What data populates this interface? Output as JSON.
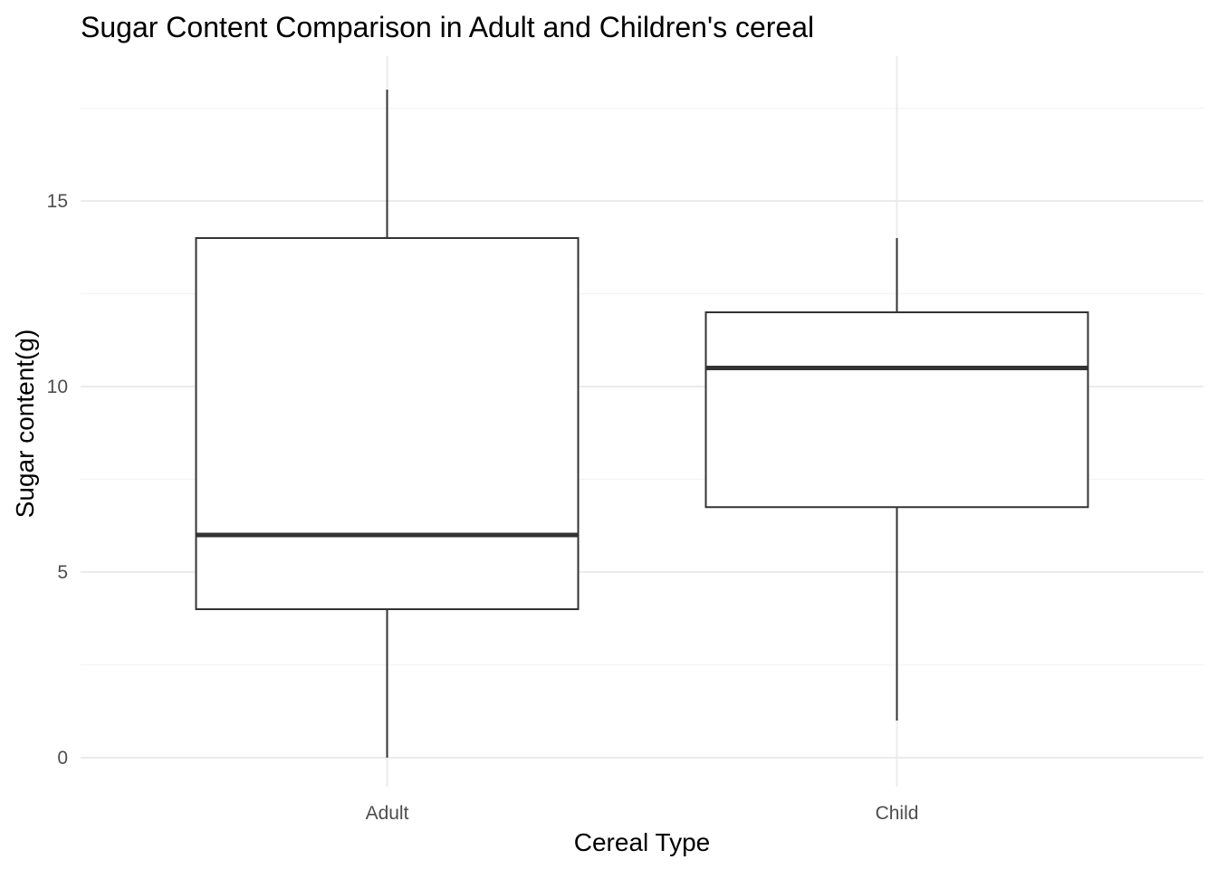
{
  "chart_data": {
    "type": "boxplot",
    "title": "Sugar Content Comparison in Adult and Children's cereal",
    "xlabel": "Cereal Type",
    "ylabel": "Sugar content(g)",
    "categories": [
      "Adult",
      "Child"
    ],
    "boxes": [
      {
        "category": "Adult",
        "min": 0,
        "q1": 4,
        "median": 6,
        "q3": 14,
        "max": 18
      },
      {
        "category": "Child",
        "min": 1,
        "q1": 6.75,
        "median": 10.5,
        "q3": 12,
        "max": 14
      }
    ],
    "yticks": [
      0,
      5,
      10,
      15
    ],
    "ylim": [
      -0.8,
      18.9
    ],
    "grid": true,
    "legend": "none",
    "colors": {
      "box_fill": "#ffffff",
      "box_line": "#333333",
      "grid": "#ebebeb",
      "tick_text": "#4d4d4d"
    }
  }
}
